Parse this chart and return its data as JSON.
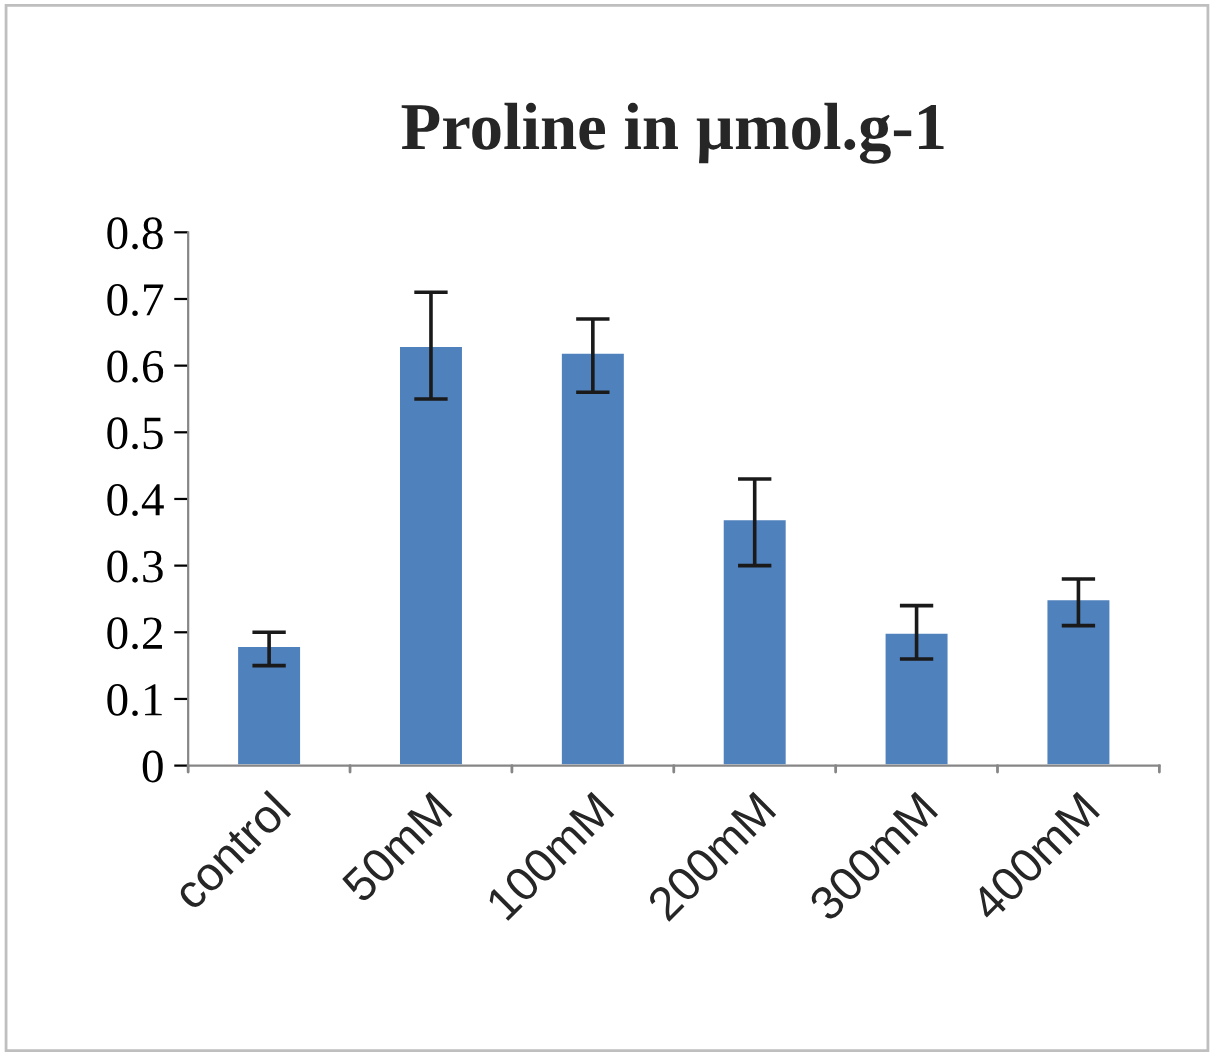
{
  "chart_data": {
    "type": "bar",
    "title": "Proline in µmol.g-1",
    "categories": [
      "control",
      "50mM",
      "100mM",
      "200mM",
      "300mM",
      "400mM"
    ],
    "values": [
      0.18,
      0.63,
      0.62,
      0.37,
      0.2,
      0.25
    ],
    "errors": [
      [
        0.15,
        0.2
      ],
      [
        0.55,
        0.71
      ],
      [
        0.56,
        0.67
      ],
      [
        0.3,
        0.43
      ],
      [
        0.16,
        0.24
      ],
      [
        0.21,
        0.28
      ]
    ],
    "color": "#4f81bd",
    "ylim": [
      0,
      0.8
    ],
    "yticks": [
      {
        "value": 0,
        "label": "0"
      },
      0.1,
      0.2,
      0.3,
      0.4,
      0.5,
      0.6,
      0.7,
      0.8
    ],
    "grid": false,
    "legend": false
  }
}
